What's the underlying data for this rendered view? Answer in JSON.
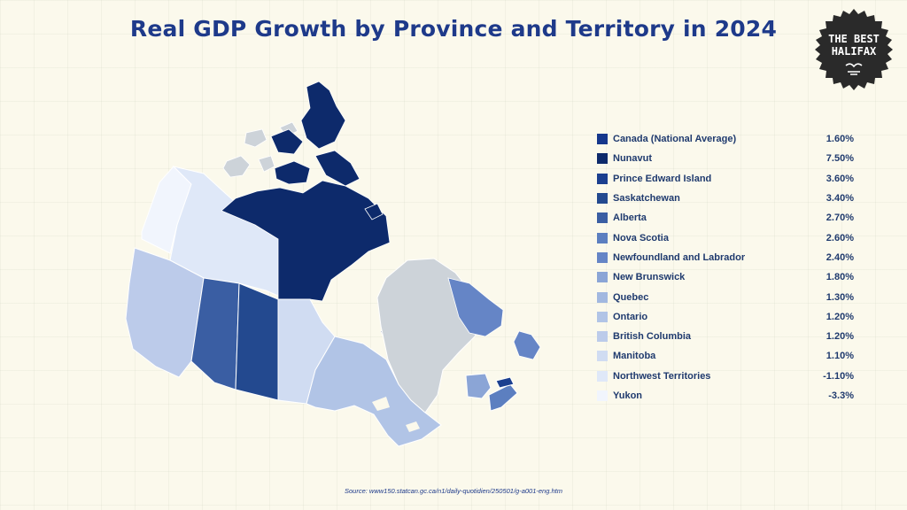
{
  "title": "Real GDP Growth by Province and Territory in 2024",
  "badge": {
    "line1": "THE BEST",
    "line2": "HALIFAX",
    "icon": "seagull-bird-icon"
  },
  "source": "Source: www150.statcan.gc.ca/n1/daily-quotidien/250501/g-a001-eng.htm",
  "colors": {
    "title": "#1e3a8a",
    "background": "#fbf9ec",
    "no_data": "#cdd3d9",
    "ramp": [
      "#0d2a6b",
      "#1b3f8f",
      "#23498f",
      "#3a5ea3",
      "#5c7fc0",
      "#6585c6",
      "#8ba5d6",
      "#a2b8e0",
      "#b1c4e6",
      "#bccbea",
      "#d0dcf2",
      "#dfe8f8",
      "#f1f5fd"
    ]
  },
  "legend": [
    {
      "name": "Canada (National Average)",
      "value": "1.60%",
      "color": "#15378c"
    },
    {
      "name": "Nunavut",
      "value": "7.50%",
      "color": "#0d2a6b"
    },
    {
      "name": "Prince Edward Island",
      "value": "3.60%",
      "color": "#1b3f8f"
    },
    {
      "name": "Saskatchewan",
      "value": "3.40%",
      "color": "#23498f"
    },
    {
      "name": "Alberta",
      "value": "2.70%",
      "color": "#3a5ea3"
    },
    {
      "name": "Nova Scotia",
      "value": "2.60%",
      "color": "#5c7fc0"
    },
    {
      "name": "Newfoundland and Labrador",
      "value": "2.40%",
      "color": "#6585c6"
    },
    {
      "name": "New Brunswick",
      "value": "1.80%",
      "color": "#8ba5d6"
    },
    {
      "name": "Quebec",
      "value": "1.30%",
      "color": "#a2b8e0"
    },
    {
      "name": "Ontario",
      "value": "1.20%",
      "color": "#b1c4e6"
    },
    {
      "name": "British Columbia",
      "value": "1.20%",
      "color": "#bccbea"
    },
    {
      "name": "Manitoba",
      "value": "1.10%",
      "color": "#d0dcf2"
    },
    {
      "name": "Northwest Territories",
      "value": "-1.10%",
      "color": "#dfe8f8"
    },
    {
      "name": "Yukon",
      "value": "-3.3%",
      "color": "#f1f5fd"
    }
  ]
}
